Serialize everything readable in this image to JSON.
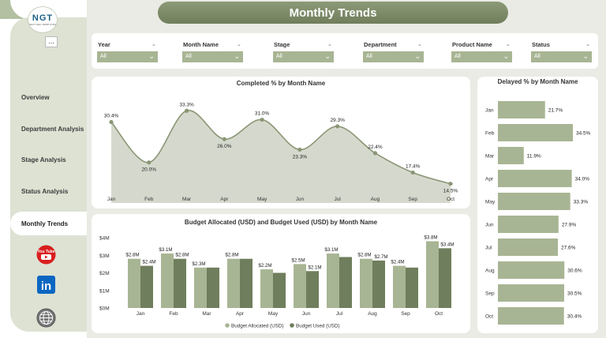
{
  "header": {
    "title": "Monthly Trends"
  },
  "logo": {
    "text": "NGT",
    "sub": "NEXT GEN TEMPLATES"
  },
  "sidebar": {
    "more_label": "...",
    "items": [
      {
        "label": "Overview"
      },
      {
        "label": "Department Analysis"
      },
      {
        "label": "Stage Analysis"
      },
      {
        "label": "Status Analysis"
      },
      {
        "label": "Monthly Trends",
        "active": true
      }
    ],
    "social": [
      {
        "icon": "youtube-icon",
        "label": "You Tube"
      },
      {
        "icon": "linkedin-icon",
        "label": "in"
      },
      {
        "icon": "globe-icon"
      }
    ]
  },
  "filters": [
    {
      "label": "Year",
      "value": "All"
    },
    {
      "label": "Month Name",
      "value": "All"
    },
    {
      "label": "Stage",
      "value": "All"
    },
    {
      "label": "Department",
      "value": "All"
    },
    {
      "label": "Product Name",
      "value": "All"
    },
    {
      "label": "Status",
      "value": "All"
    }
  ],
  "chart_data": [
    {
      "type": "area",
      "title": "Completed % by Month Name",
      "categories": [
        "Jan",
        "Feb",
        "Mar",
        "Apr",
        "May",
        "Jun",
        "Jul",
        "Aug",
        "Sep",
        "Oct"
      ],
      "values": [
        30.4,
        20.0,
        33.3,
        26.0,
        31.0,
        23.3,
        29.3,
        22.4,
        17.4,
        14.5
      ],
      "labels": [
        "30.4%",
        "20.0%",
        "33.3%",
        "26.0%",
        "31.0%",
        "23.3%",
        "29.3%",
        "22.4%",
        "17.4%",
        "14.5%"
      ],
      "colors": {
        "area": "#d5d9cd",
        "line": "#8a9675",
        "marker": "#8a9675"
      }
    },
    {
      "type": "bar",
      "orientation": "horizontal",
      "title": "Delayed % by Month Name",
      "categories": [
        "Jan",
        "Feb",
        "Mar",
        "Apr",
        "May",
        "Jun",
        "Jul",
        "Aug",
        "Sep",
        "Oct"
      ],
      "values": [
        21.7,
        34.5,
        11.9,
        34.0,
        33.3,
        27.9,
        27.6,
        30.6,
        30.5,
        30.4
      ],
      "labels": [
        "21.7%",
        "34.5%",
        "11.9%",
        "34.0%",
        "33.3%",
        "27.9%",
        "27.6%",
        "30.6%",
        "30.5%",
        "30.4%"
      ],
      "colors": {
        "bar": "#a8b594"
      }
    },
    {
      "type": "bar",
      "title": "Budget Allocated (USD) and Budget Used (USD) by Month Name",
      "categories": [
        "Jan",
        "Feb",
        "Mar",
        "Apr",
        "May",
        "Jun",
        "Jul",
        "Aug",
        "Sep",
        "Oct"
      ],
      "yticks": [
        "$0M",
        "$1M",
        "$2M",
        "$3M",
        "$4M"
      ],
      "ylim": [
        0,
        4
      ],
      "series": [
        {
          "name": "Budget Allocated (USD)",
          "values": [
            2.8,
            3.1,
            2.3,
            2.8,
            2.2,
            2.5,
            3.1,
            2.8,
            2.4,
            3.8
          ],
          "labels": [
            "$2.8M",
            "$3.1M",
            "$2.3M",
            "$2.8M",
            "$2.2M",
            "$2.5M",
            "$3.1M",
            "$2.8M",
            "$2.4M",
            "$3.8M"
          ],
          "color": "#a8b594"
        },
        {
          "name": "Budget Used (USD)",
          "values": [
            2.4,
            2.8,
            2.3,
            2.8,
            2.0,
            2.1,
            2.9,
            2.7,
            2.3,
            3.4
          ],
          "labels": [
            "$2.4M",
            "$2.8M",
            "",
            "",
            "",
            "$2.1M",
            "",
            "$2.7M",
            "",
            "$3.4M"
          ],
          "color": "#6f7e5c"
        }
      ],
      "legend_position": "bottom"
    }
  ]
}
